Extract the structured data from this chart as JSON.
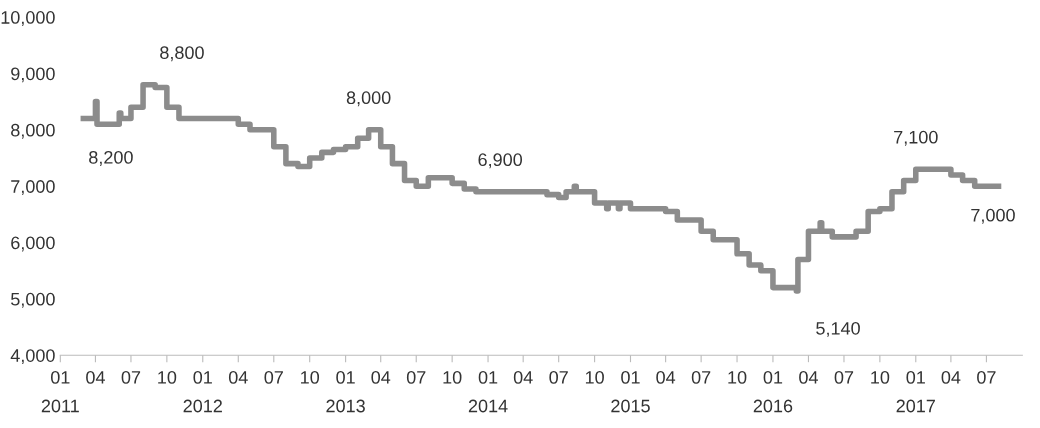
{
  "chart_data": {
    "type": "step",
    "color": "#8c8c8c",
    "x": [
      "2011-03",
      "2011-04-01",
      "2011-04-05",
      "2011-06-01",
      "2011-06-05",
      "2011-07",
      "2011-08",
      "2011-09",
      "2011-10",
      "2011-11",
      "2012-04",
      "2012-05",
      "2012-07",
      "2012-08",
      "2012-09",
      "2012-10",
      "2012-11",
      "2012-12",
      "2013-01",
      "2013-02",
      "2013-03",
      "2013-04",
      "2013-05",
      "2013-06",
      "2013-07",
      "2013-08",
      "2013-10",
      "2013-11",
      "2013-12",
      "2014-06",
      "2014-07",
      "2014-07-20",
      "2014-08-10",
      "2014-08-15",
      "2014-10",
      "2014-11",
      "2014-11-05",
      "2014-12",
      "2014-12-05",
      "2015-01",
      "2015-04",
      "2015-05",
      "2015-07",
      "2015-08",
      "2015-10",
      "2015-11",
      "2015-12",
      "2016-01",
      "2016-03-01",
      "2016-03-05",
      "2016-04",
      "2016-05",
      "2016-05-05",
      "2016-06",
      "2016-08",
      "2016-09",
      "2016-10",
      "2016-11",
      "2016-12",
      "2017-01",
      "2017-04",
      "2017-05",
      "2017-06",
      "2017-08"
    ],
    "values": [
      8200,
      8500,
      8100,
      8300,
      8200,
      8400,
      8800,
      8750,
      8400,
      8200,
      8100,
      8000,
      7700,
      7400,
      7350,
      7500,
      7600,
      7650,
      7700,
      7850,
      8000,
      7700,
      7400,
      7100,
      7000,
      7150,
      7050,
      6950,
      6900,
      6850,
      6800,
      6900,
      7000,
      6900,
      6700,
      6600,
      6700,
      6600,
      6700,
      6600,
      6550,
      6400,
      6200,
      6050,
      5800,
      5600,
      5500,
      5200,
      5140,
      5700,
      6200,
      6350,
      6200,
      6100,
      6200,
      6550,
      6600,
      6900,
      7100,
      7300,
      7200,
      7100,
      7000,
      7000
    ],
    "xlim": [
      "2011-01",
      "2017-10"
    ],
    "xticks": [
      {
        "value": "2011-01",
        "label": "01\n2011"
      },
      {
        "value": "2011-04",
        "label": "04"
      },
      {
        "value": "2011-07",
        "label": "07"
      },
      {
        "value": "2011-10",
        "label": "10"
      },
      {
        "value": "2012-01",
        "label": "01\n2012"
      },
      {
        "value": "2012-04",
        "label": "04"
      },
      {
        "value": "2012-07",
        "label": "07"
      },
      {
        "value": "2012-10",
        "label": "10"
      },
      {
        "value": "2013-01",
        "label": "01\n2013"
      },
      {
        "value": "2013-04",
        "label": "04"
      },
      {
        "value": "2013-07",
        "label": "07"
      },
      {
        "value": "2013-10",
        "label": "10"
      },
      {
        "value": "2014-01",
        "label": "01\n2014"
      },
      {
        "value": "2014-04",
        "label": "04"
      },
      {
        "value": "2014-07",
        "label": "07"
      },
      {
        "value": "2014-10",
        "label": "10"
      },
      {
        "value": "2015-01",
        "label": "01\n2015"
      },
      {
        "value": "2015-04",
        "label": "04"
      },
      {
        "value": "2015-07",
        "label": "07"
      },
      {
        "value": "2015-10",
        "label": "10"
      },
      {
        "value": "2016-01",
        "label": "01\n2016"
      },
      {
        "value": "2016-04",
        "label": "04"
      },
      {
        "value": "2016-07",
        "label": "07"
      },
      {
        "value": "2016-10",
        "label": "10"
      },
      {
        "value": "2017-01",
        "label": "01\n2017"
      },
      {
        "value": "2017-04",
        "label": "04"
      },
      {
        "value": "2017-07",
        "label": "07"
      }
    ],
    "ylim": [
      4000,
      10000
    ],
    "yticks": [
      {
        "value": 4000,
        "label": "4,000"
      },
      {
        "value": 5000,
        "label": "5,000"
      },
      {
        "value": 6000,
        "label": "6,000"
      },
      {
        "value": 7000,
        "label": "7,000"
      },
      {
        "value": 8000,
        "label": "8,000"
      },
      {
        "value": 9000,
        "label": "9,000"
      },
      {
        "value": 10000,
        "label": "10,000"
      }
    ],
    "annotations": [
      {
        "text": "8,200",
        "x": "2011-04-05",
        "y": 8100
      },
      {
        "text": "8,800",
        "x": "2011-08",
        "y": 8800
      },
      {
        "text": "8,000",
        "x": "2013-03",
        "y": 8000
      },
      {
        "text": "6,900",
        "x": "2014-02",
        "y": 6900
      },
      {
        "text": "5,140",
        "x": "2016-03-01",
        "y": 5140
      },
      {
        "text": "7,100",
        "x": "2017-01",
        "y": 7300
      },
      {
        "text": "7,000",
        "x": "2017-08",
        "y": 7000
      }
    ],
    "grid": false,
    "legend": false
  }
}
